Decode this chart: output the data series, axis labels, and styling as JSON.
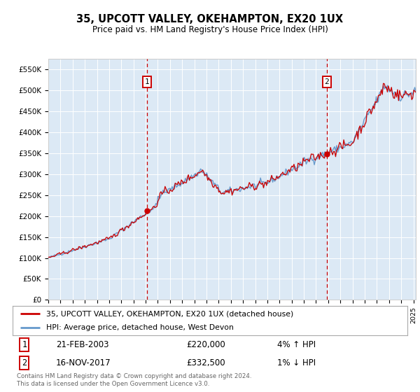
{
  "title": "35, UPCOTT VALLEY, OKEHAMPTON, EX20 1UX",
  "subtitle": "Price paid vs. HM Land Registry's House Price Index (HPI)",
  "ylim": [
    0,
    575000
  ],
  "xlim_start": 1995.0,
  "xlim_end": 2025.2,
  "background_color": "#dce9f5",
  "plot_bg_color": "#dce9f5",
  "grid_color": "#ffffff",
  "sale1_x": 2003.13,
  "sale1_price": 220000,
  "sale2_x": 2017.88,
  "sale2_price": 332500,
  "legend_line1": "35, UPCOTT VALLEY, OKEHAMPTON, EX20 1UX (detached house)",
  "legend_line2": "HPI: Average price, detached house, West Devon",
  "footer1": "Contains HM Land Registry data © Crown copyright and database right 2024.",
  "footer2": "This data is licensed under the Open Government Licence v3.0.",
  "table_row1": [
    "1",
    "21-FEB-2003",
    "£220,000",
    "4% ↑ HPI"
  ],
  "table_row2": [
    "2",
    "16-NOV-2017",
    "£332,500",
    "1% ↓ HPI"
  ],
  "line_color_red": "#cc0000",
  "line_color_blue": "#6699cc",
  "vline_color": "#cc0000",
  "hpi_base": 75000,
  "noise_seed": 42
}
